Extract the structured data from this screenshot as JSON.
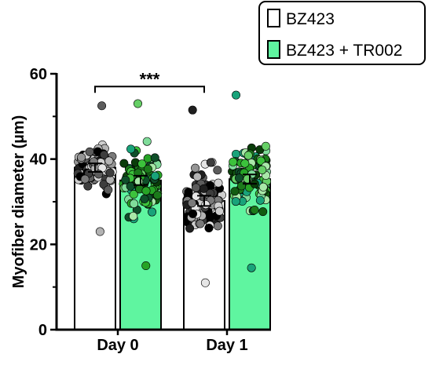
{
  "chart_data": {
    "type": "bar",
    "categories": [
      "Day 0",
      "Day 1"
    ],
    "ylabel": "Myofiber diameter  (µm)",
    "xlabel": "",
    "ylim": [
      0,
      60
    ],
    "yticks": [
      0,
      20,
      40,
      60
    ],
    "grid": false,
    "legend_position": "top-right",
    "series": [
      {
        "name": "BZ423",
        "values": [
          38.0,
          30.2
        ],
        "error": [
          1.0,
          1.2
        ],
        "fill": "#ffffff",
        "point_palette": [
          "#000000",
          "#1f1f1f",
          "#3d3d3d",
          "#5c5c5c",
          "#7a7a7a",
          "#959595",
          "#b3b3b3",
          "#cfcfcf",
          "#e6e6e6"
        ],
        "point_ranges": [
          [
            23,
            52.5
          ],
          [
            11,
            51.5
          ]
        ]
      },
      {
        "name": "BZ423 + TR002",
        "values": [
          35.0,
          35.3
        ],
        "error": [
          1.1,
          1.1
        ],
        "fill": "#5ff5a0",
        "point_palette": [
          "#0a3d0a",
          "#125c12",
          "#1b7a1b",
          "#26a326",
          "#3cc23c",
          "#66cf66",
          "#19a37a",
          "#7fdc9a",
          "#0f4f2a",
          "#a8e8a8"
        ],
        "point_ranges": [
          [
            15,
            53
          ],
          [
            14.5,
            55
          ]
        ]
      }
    ],
    "annotations": [
      {
        "type": "significance",
        "text": "***",
        "between": [
          "BZ423 Day 0",
          "BZ423 Day 1"
        ],
        "y": 57
      }
    ]
  },
  "colors": {
    "axis": "#000000",
    "bar_outline": "#000000",
    "green_fill": "#5ff5a0"
  }
}
